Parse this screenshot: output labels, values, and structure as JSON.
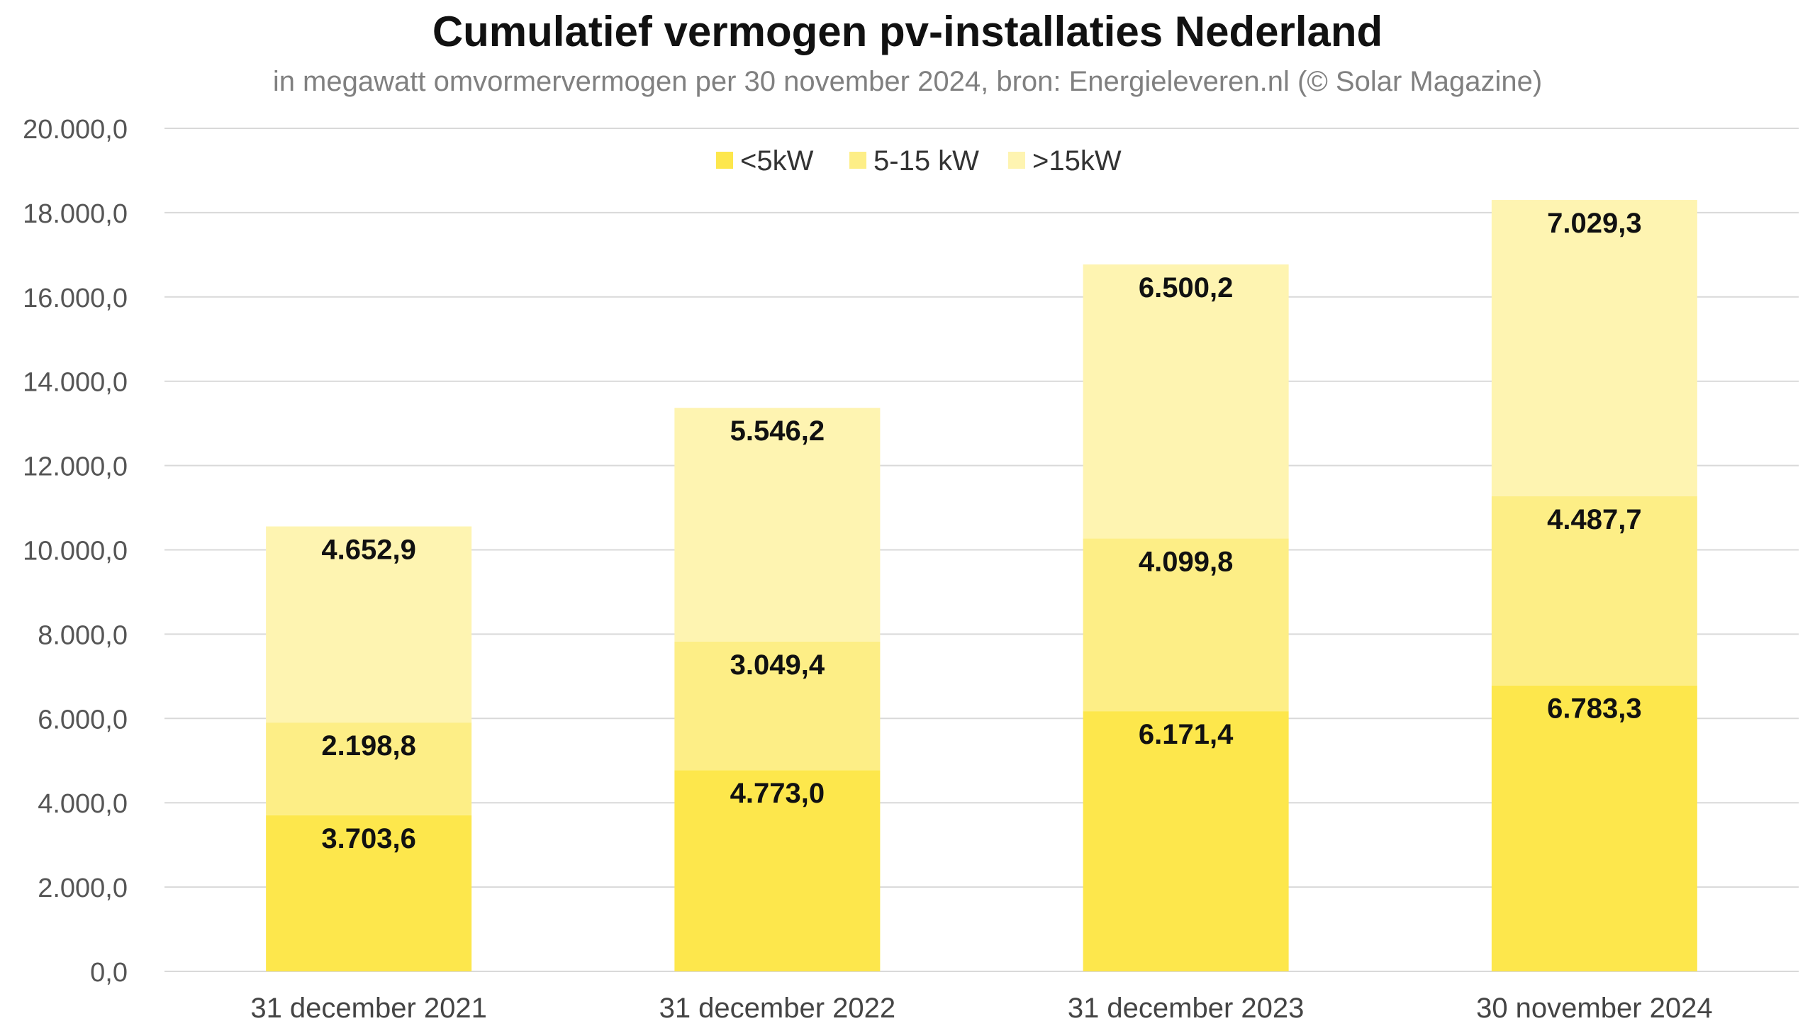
{
  "chart_data": {
    "type": "bar",
    "stacked": true,
    "title": "Cumulatief vermogen pv-installaties Nederland",
    "subtitle": "in megawatt omvormervermogen per 30 november 2024, bron: Energieleveren.nl (© Solar Magazine)",
    "xlabel": "",
    "ylabel": "",
    "ylim": [
      0,
      20000
    ],
    "yticks": [
      0,
      2000,
      4000,
      6000,
      8000,
      10000,
      12000,
      14000,
      16000,
      18000,
      20000
    ],
    "ytick_labels": [
      "0,0",
      "2.000,0",
      "4.000,0",
      "6.000,0",
      "8.000,0",
      "10.000,0",
      "12.000,0",
      "14.000,0",
      "16.000,0",
      "18.000,0",
      "20.000,0"
    ],
    "grid": true,
    "legend_position": "top-center",
    "categories": [
      "31 december 2021",
      "31 december 2022",
      "31 december 2023",
      "30 november 2024"
    ],
    "series": [
      {
        "name": "<5kW",
        "color": "#fde74c",
        "values": [
          3703.6,
          4773.0,
          6171.4,
          6783.3
        ],
        "labels": [
          "3.703,6",
          "4.773,0",
          "6.171,4",
          "6.783,3"
        ]
      },
      {
        "name": "5-15 kW",
        "color": "#fdee86",
        "values": [
          2198.8,
          3049.4,
          4099.8,
          4487.7
        ],
        "labels": [
          "2.198,8",
          "3.049,4",
          "4.099,8",
          "4.487,7"
        ]
      },
      {
        "name": ">15kW",
        "color": "#fef4b1",
        "values": [
          4652.9,
          5546.2,
          6500.2,
          7029.3
        ],
        "labels": [
          "4.652,9",
          "5.546,2",
          "6.500,2",
          "7.029,3"
        ]
      }
    ]
  }
}
